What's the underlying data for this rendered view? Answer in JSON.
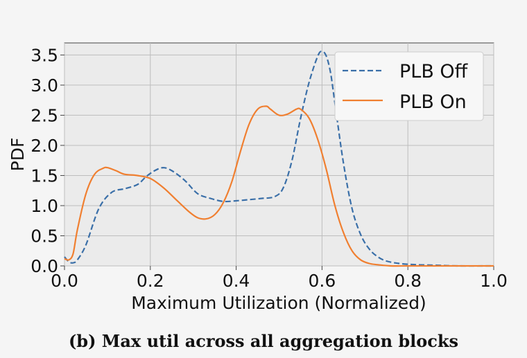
{
  "caption": "(b) Max util across all aggregation blocks",
  "chart_data": {
    "type": "line",
    "xlabel": "Maximum Utilization (Normalized)",
    "ylabel": "PDF",
    "xlim": [
      0.0,
      1.0
    ],
    "ylim": [
      0.0,
      3.7
    ],
    "grid": true,
    "legend_position": "top-right",
    "x_ticks": [
      "0.0",
      "0.2",
      "0.4",
      "0.6",
      "0.8",
      "1.0"
    ],
    "y_ticks": [
      "0.0",
      "0.5",
      "1.0",
      "1.5",
      "2.0",
      "2.5",
      "3.0",
      "3.5"
    ],
    "series": [
      {
        "name": "PLB Off",
        "color": "#3a6fa8",
        "dash": "dashed",
        "x": [
          0.0,
          0.01,
          0.02,
          0.03,
          0.05,
          0.08,
          0.11,
          0.14,
          0.17,
          0.19,
          0.21,
          0.23,
          0.25,
          0.28,
          0.31,
          0.34,
          0.37,
          0.4,
          0.43,
          0.46,
          0.49,
          0.51,
          0.53,
          0.55,
          0.57,
          0.59,
          0.6,
          0.61,
          0.62,
          0.63,
          0.65,
          0.67,
          0.69,
          0.71,
          0.73,
          0.75,
          0.78,
          0.82,
          0.87,
          0.92,
          1.0
        ],
        "y": [
          0.15,
          0.07,
          0.05,
          0.1,
          0.35,
          0.95,
          1.22,
          1.28,
          1.35,
          1.48,
          1.58,
          1.63,
          1.58,
          1.42,
          1.2,
          1.12,
          1.07,
          1.08,
          1.1,
          1.12,
          1.15,
          1.3,
          1.75,
          2.45,
          3.05,
          3.48,
          3.56,
          3.48,
          3.2,
          2.7,
          1.7,
          0.95,
          0.52,
          0.28,
          0.15,
          0.08,
          0.04,
          0.02,
          0.01,
          0.0,
          0.0
        ]
      },
      {
        "name": "PLB On",
        "color": "#f07f30",
        "dash": "solid",
        "x": [
          0.0,
          0.01,
          0.02,
          0.03,
          0.05,
          0.07,
          0.09,
          0.1,
          0.12,
          0.14,
          0.17,
          0.2,
          0.23,
          0.26,
          0.29,
          0.31,
          0.33,
          0.35,
          0.37,
          0.39,
          0.41,
          0.43,
          0.45,
          0.47,
          0.48,
          0.5,
          0.52,
          0.54,
          0.55,
          0.57,
          0.59,
          0.61,
          0.63,
          0.65,
          0.67,
          0.69,
          0.71,
          0.73,
          0.76,
          0.8,
          0.85,
          1.0
        ],
        "y": [
          0.12,
          0.1,
          0.2,
          0.6,
          1.2,
          1.52,
          1.62,
          1.63,
          1.58,
          1.52,
          1.5,
          1.45,
          1.3,
          1.1,
          0.9,
          0.8,
          0.78,
          0.85,
          1.05,
          1.4,
          1.9,
          2.35,
          2.6,
          2.65,
          2.6,
          2.5,
          2.52,
          2.6,
          2.6,
          2.45,
          2.1,
          1.6,
          1.0,
          0.55,
          0.25,
          0.1,
          0.04,
          0.02,
          0.0,
          0.0,
          0.0,
          0.0
        ]
      }
    ]
  }
}
